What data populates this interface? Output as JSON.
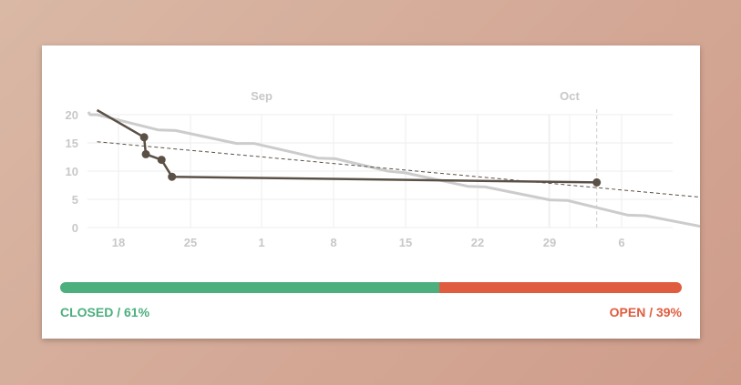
{
  "chart_data": {
    "type": "line",
    "month_labels": [
      "Sep",
      "Oct"
    ],
    "x_tick_labels": [
      "18",
      "25",
      "1",
      "8",
      "15",
      "22",
      "29",
      "6"
    ],
    "y_tick_labels": [
      "20",
      "15",
      "10",
      "5",
      "0"
    ],
    "ylim": [
      0,
      20
    ],
    "series": [
      {
        "style": "ideal",
        "color": "#cccccc",
        "points": [
          [
            0.0,
            20.5
          ],
          [
            0.1,
            20.0
          ],
          [
            0.5,
            20.0
          ],
          [
            4.0,
            17.3
          ],
          [
            5.0,
            17.2
          ],
          [
            8.5,
            14.9
          ],
          [
            9.5,
            14.9
          ],
          [
            13.2,
            12.3
          ],
          [
            14.2,
            12.2
          ],
          [
            17.2,
            10.0
          ],
          [
            18.2,
            9.7
          ],
          [
            21.8,
            7.3
          ],
          [
            22.8,
            7.2
          ],
          [
            26.5,
            4.9
          ],
          [
            27.5,
            4.8
          ],
          [
            31.0,
            2.2
          ],
          [
            32.0,
            2.1
          ],
          [
            35.5,
            0.0
          ]
        ]
      },
      {
        "style": "actual",
        "color": "#5b5046",
        "points": [
          [
            0.5,
            20.8
          ],
          [
            3.2,
            16.0
          ],
          [
            3.3,
            13.0
          ],
          [
            4.2,
            12.0
          ],
          [
            4.8,
            9.0
          ],
          [
            29.2,
            8.0
          ]
        ],
        "markers": [
          [
            3.2,
            16.0
          ],
          [
            3.3,
            13.0
          ],
          [
            4.2,
            12.0
          ],
          [
            4.8,
            9.0
          ],
          [
            29.2,
            8.0
          ]
        ]
      },
      {
        "style": "trend",
        "color": "#5b5046",
        "points": [
          [
            0.5,
            15.2
          ],
          [
            36.5,
            5.0
          ]
        ]
      }
    ],
    "today_index": 29.2
  },
  "progress": {
    "closed_fraction": 0.61,
    "closed_label": "CLOSED / 61%",
    "open_label": "OPEN / 39%",
    "closed_color": "#4caf7d",
    "open_color": "#e05c3e"
  }
}
